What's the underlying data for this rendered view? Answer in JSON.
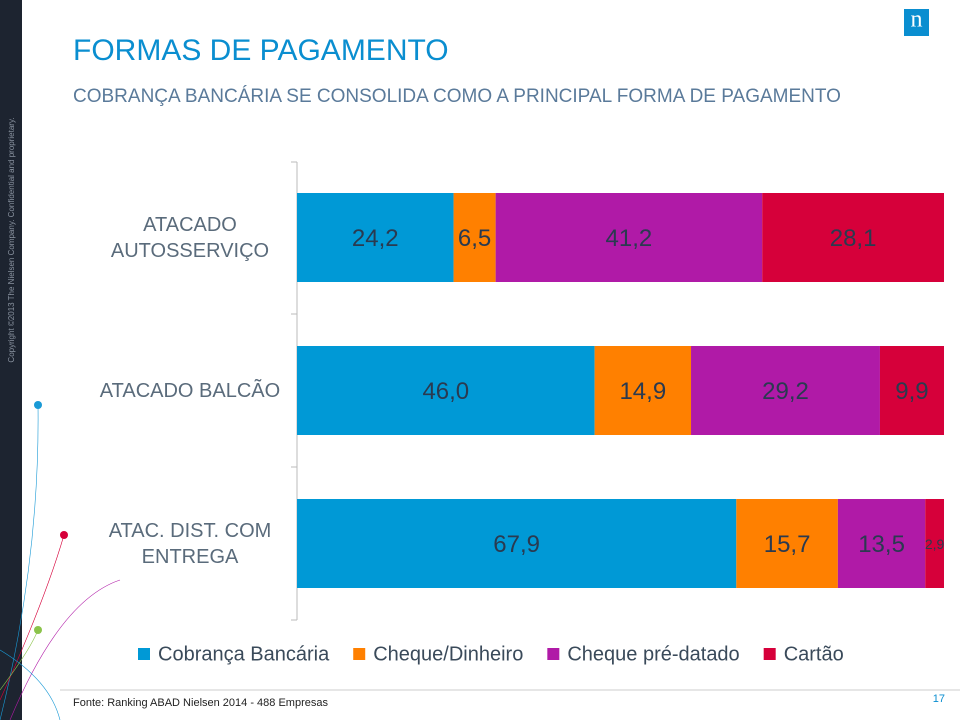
{
  "chart_data": {
    "type": "stacked-bar-horizontal",
    "title": "FORMAS DE PAGAMENTO",
    "subtitle": "COBRANÇA BANCÁRIA SE CONSOLIDA COMO A PRINCIPAL FORMA DE PAGAMENTO",
    "categories": [
      "ATACADO\nAUTOSSERVIÇO",
      "ATACADO BALCÃO",
      "ATAC. DIST. COM\nENTREGA"
    ],
    "xlim": [
      0,
      100
    ],
    "series": [
      {
        "name": "Cobrança Bancária",
        "color": "#0099d6",
        "values": [
          24.2,
          46.0,
          67.9
        ],
        "value_labels": [
          "24,2",
          "46,0",
          "67,9"
        ]
      },
      {
        "name": "Cheque/Dinheiro",
        "color": "#ff8000",
        "values": [
          6.5,
          14.9,
          15.7
        ],
        "value_labels": [
          "6,5",
          "14,9",
          "15,7"
        ]
      },
      {
        "name": "Cheque pré-datado",
        "color": "#b01aa7",
        "values": [
          41.2,
          29.2,
          13.5
        ],
        "value_labels": [
          "41,2",
          "29,2",
          "13,5"
        ]
      },
      {
        "name": "Cartão",
        "color": "#d6003a",
        "values": [
          28.1,
          9.9,
          2.9
        ],
        "value_labels": [
          "28,1",
          "9,9",
          "2,9"
        ]
      }
    ],
    "legend": "bottom"
  },
  "slide": {
    "copyright": "Copyright ©2013 The Nielsen Company. Confidential and proprietary.",
    "logo": "n",
    "source": "Fonte: Ranking ABAD Nielsen 2014  - 488 Empresas",
    "page_number": "17"
  }
}
